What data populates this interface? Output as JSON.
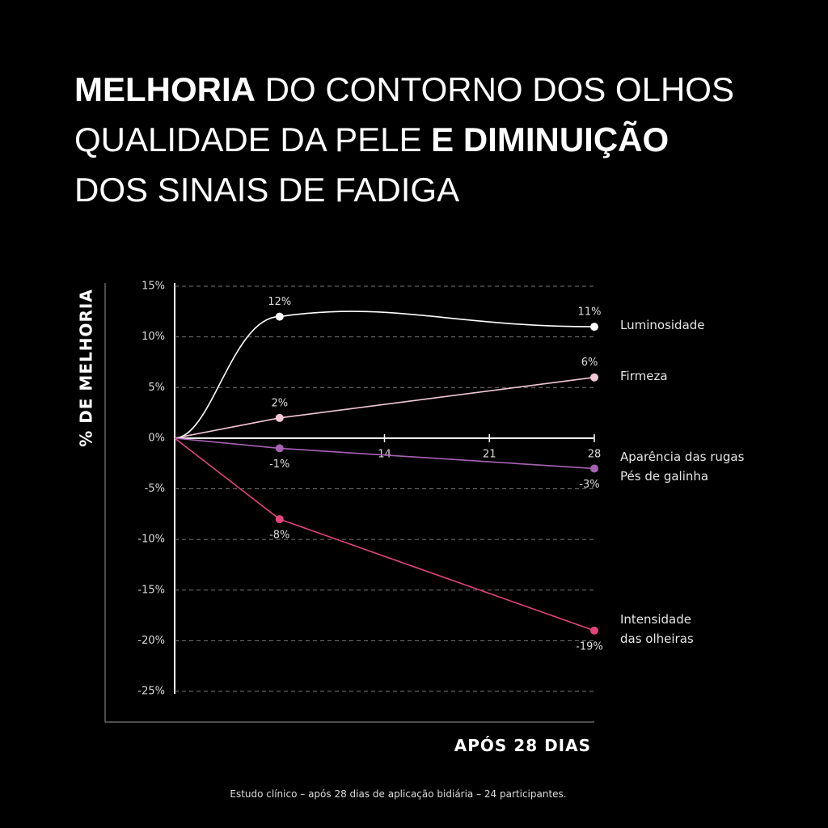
{
  "chart_data": {
    "type": "line",
    "title_lines": [
      [
        {
          "text": "MELHORIA",
          "bold": true
        },
        {
          "text": "DO CONTORNO DOS OLHOS",
          "bold": false
        }
      ],
      [
        {
          "text": "QUALIDADE DA PELE",
          "bold": false
        },
        {
          "text": "E DIMINUIÇÃO",
          "bold": true
        }
      ],
      [
        {
          "text": "DOS SINAIS DE FADIGA",
          "bold": false
        }
      ]
    ],
    "y_label": "% DE MELHORIA",
    "x_label": "APÓS 28 DIAS",
    "footnote": "Estudo clínico – após 28 dias de aplicação bidiária – 24 participantes.",
    "x": [
      0,
      7,
      28
    ],
    "xlim": [
      0,
      28
    ],
    "xticks": [
      14,
      21,
      28
    ],
    "ylim": [
      -25,
      15
    ],
    "yticks": [
      {
        "value": 15,
        "label": "15%"
      },
      {
        "value": 10,
        "label": "10%"
      },
      {
        "value": 5,
        "label": "5%"
      },
      {
        "value": 0,
        "label": "0%"
      },
      {
        "value": -5,
        "label": "-5%"
      },
      {
        "value": -10,
        "label": "-10%"
      },
      {
        "value": -15,
        "label": "-15%"
      },
      {
        "value": -20,
        "label": "-20%"
      },
      {
        "value": -25,
        "label": "-25%"
      }
    ],
    "grid": true,
    "series": [
      {
        "name": "Luminosidade",
        "color": "#ffffff",
        "smooth": true,
        "values": [
          0,
          12,
          11
        ],
        "value_labels": [
          null,
          "12%",
          "11%"
        ]
      },
      {
        "name": "Firmeza",
        "color": "#f3c8d6",
        "smooth": false,
        "values": [
          0,
          2,
          6
        ],
        "value_labels": [
          null,
          "2%",
          "6%"
        ]
      },
      {
        "name": "Aparência das rugas\nPés de galinha",
        "color": "#a862b4",
        "smooth": false,
        "values": [
          0,
          -1,
          -3
        ],
        "value_labels": [
          null,
          "-1%",
          "-3%"
        ]
      },
      {
        "name": "Intensidade\ndas olheiras",
        "color": "#e2447e",
        "smooth": false,
        "values": [
          0,
          -8,
          -19
        ],
        "value_labels": [
          null,
          "-8%",
          "-19%"
        ]
      }
    ]
  }
}
